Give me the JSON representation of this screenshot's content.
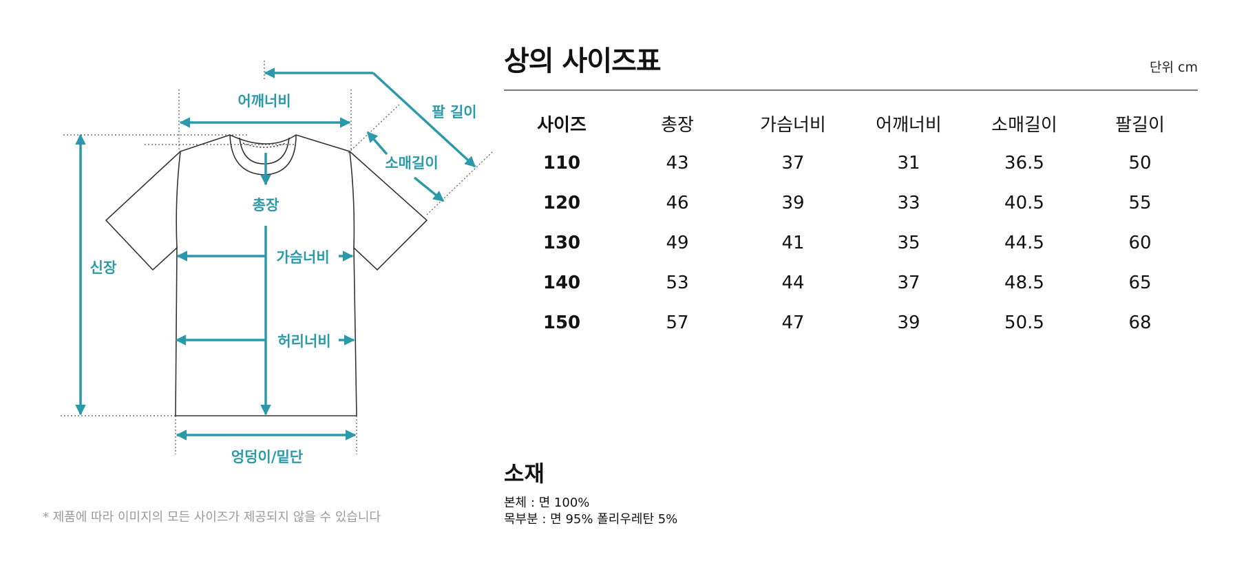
{
  "diagram": {
    "labels": {
      "shoulder": "어깨너비",
      "arm_length": "팔 길이",
      "sleeve_length": "소매길이",
      "total_length": "총장",
      "height": "신장",
      "chest": "가슴너비",
      "waist": "허리너비",
      "hem": "엉덩이/밑단"
    },
    "accent_color": "#2a9aaa"
  },
  "footnote": "* 제품에 따라 이미지의 모든 사이즈가 제공되지 않을 수 있습니다",
  "size_chart": {
    "title": "상의 사이즈표",
    "unit": "단위 cm",
    "columns": [
      "사이즈",
      "총장",
      "가슴너비",
      "어깨너비",
      "소매길이",
      "팔길이"
    ],
    "rows": [
      [
        "110",
        "43",
        "37",
        "31",
        "36.5",
        "50"
      ],
      [
        "120",
        "46",
        "39",
        "33",
        "40.5",
        "55"
      ],
      [
        "130",
        "49",
        "41",
        "35",
        "44.5",
        "60"
      ],
      [
        "140",
        "53",
        "44",
        "37",
        "48.5",
        "65"
      ],
      [
        "150",
        "57",
        "47",
        "39",
        "50.5",
        "68"
      ]
    ]
  },
  "material": {
    "title": "소재",
    "lines": [
      "본체 : 면 100%",
      "목부분 : 면 95% 폴리우레탄 5%"
    ]
  }
}
